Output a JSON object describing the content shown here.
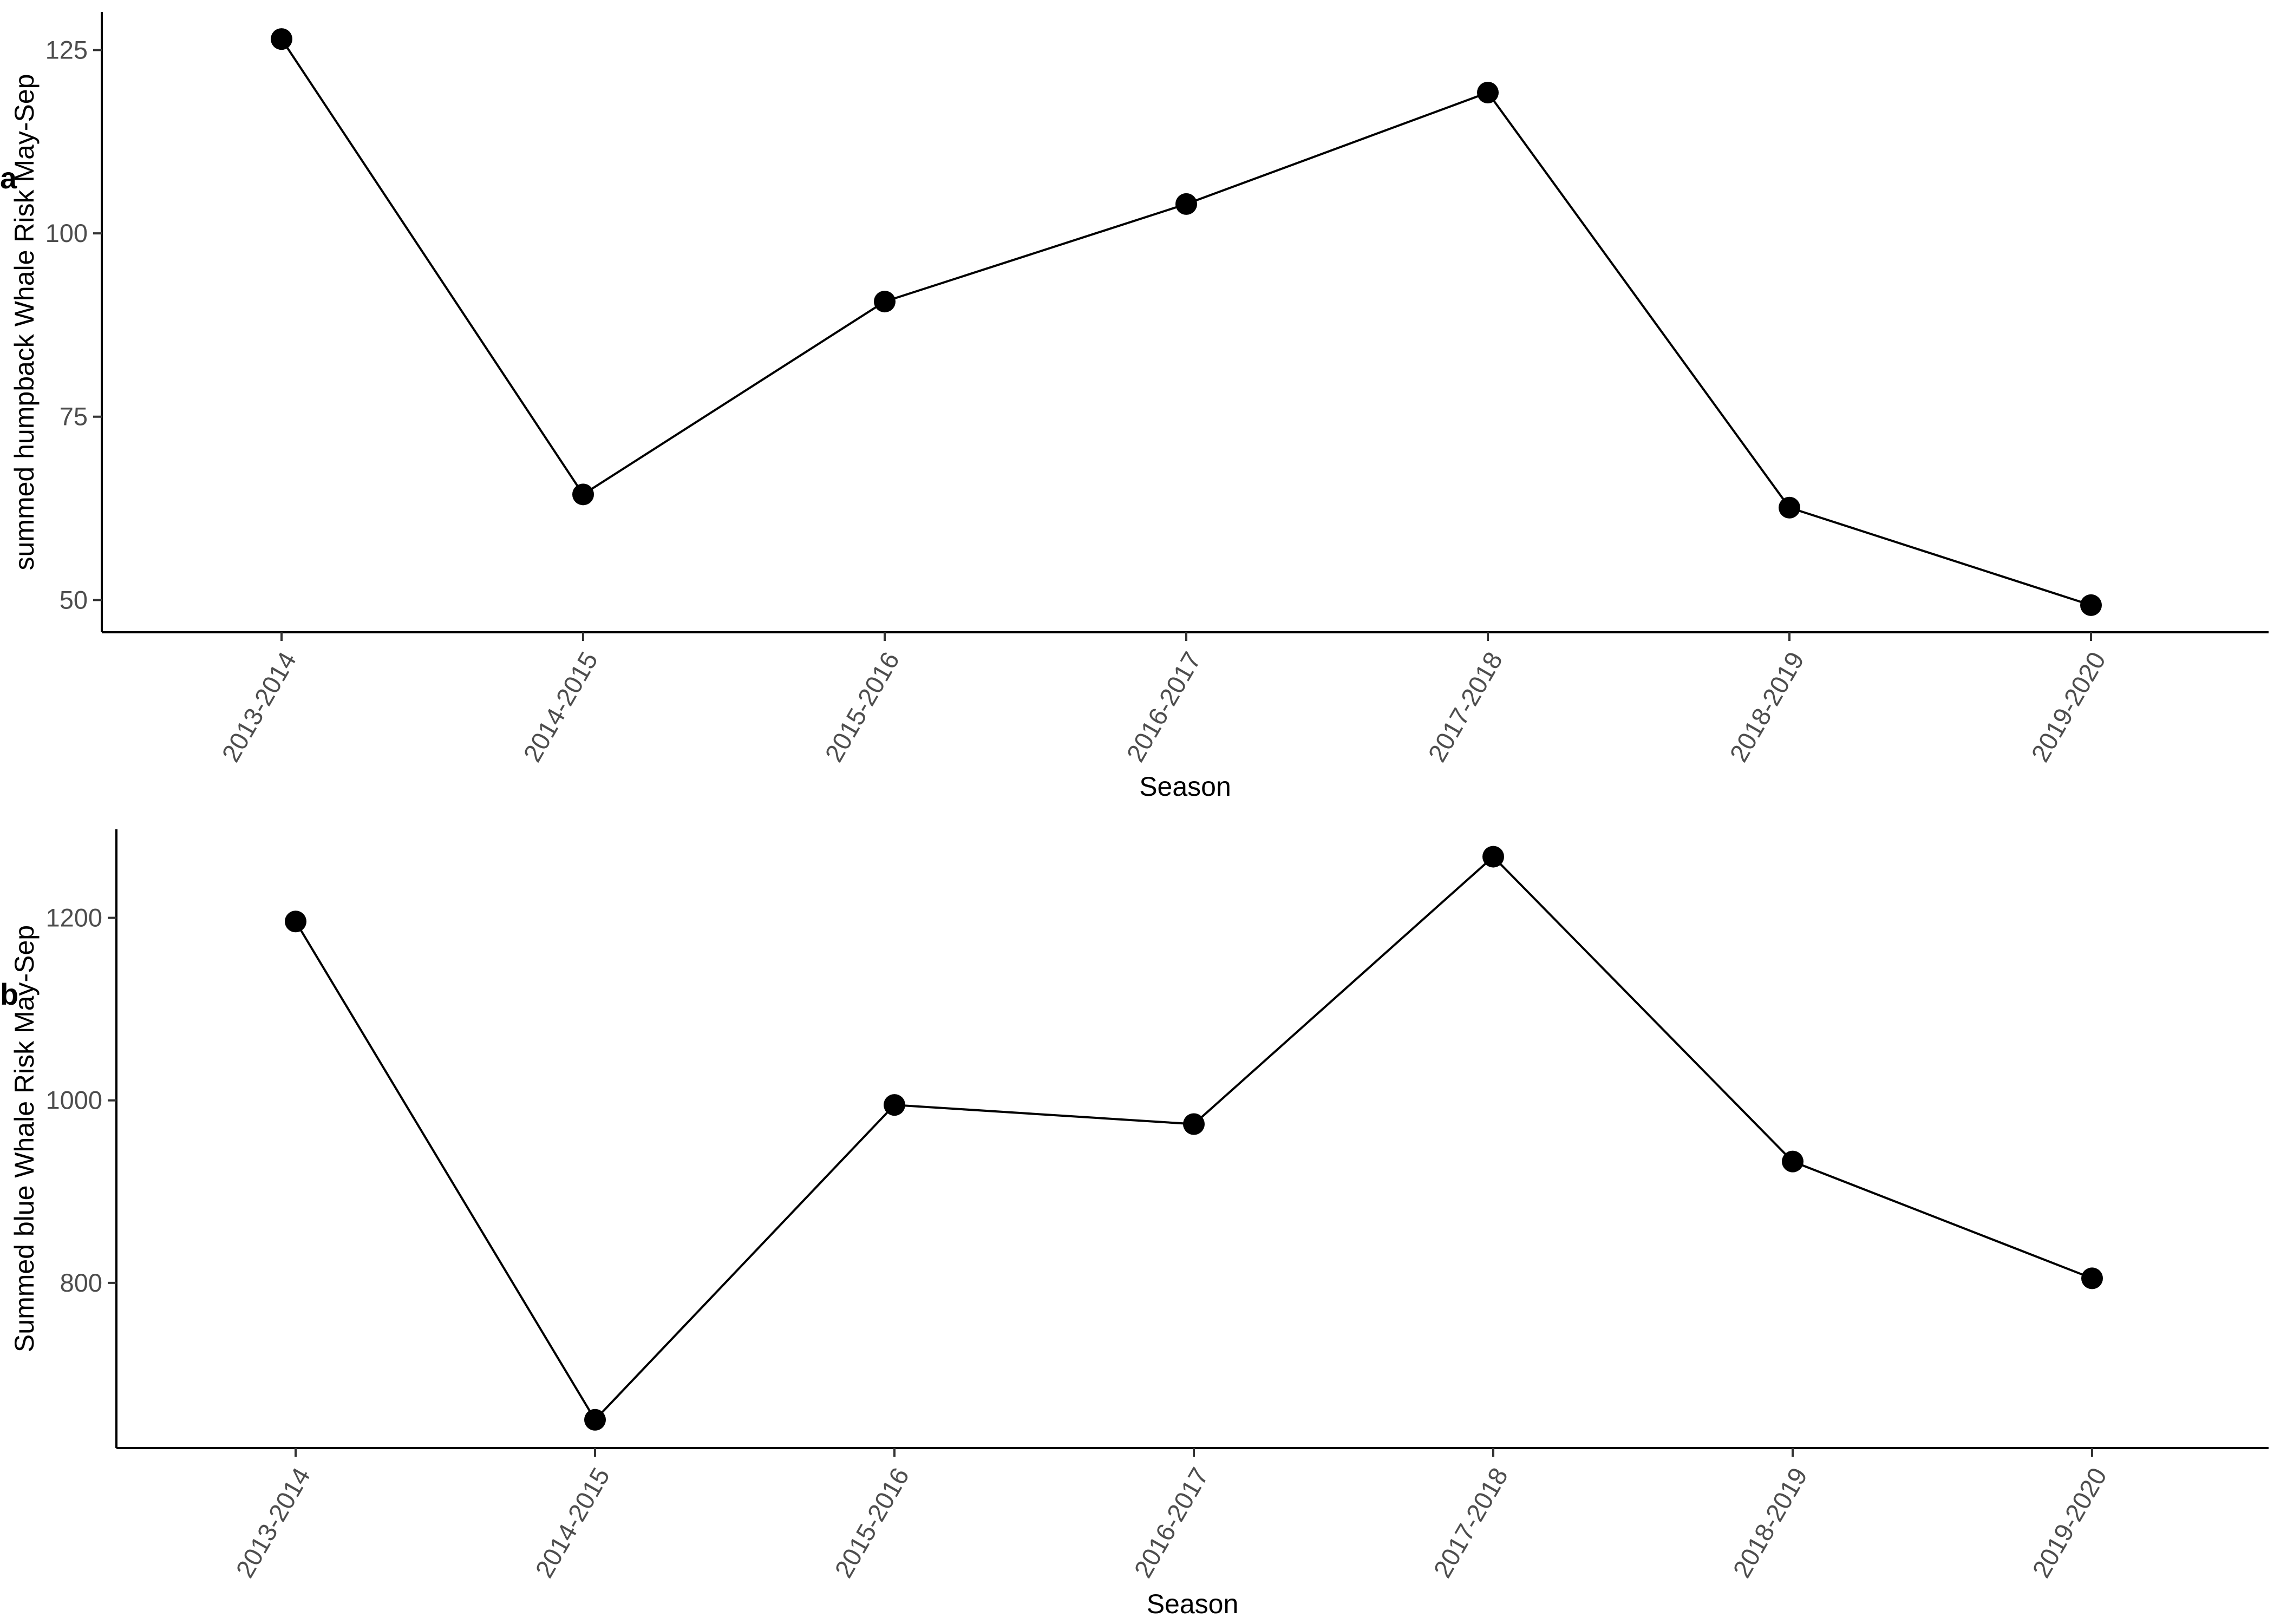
{
  "chart_data": [
    {
      "type": "line",
      "panel_label": "a",
      "categories": [
        "2013-2014",
        "2014-2015",
        "2015-2016",
        "2016-2017",
        "2017-2018",
        "2018-2019",
        "2019-2020"
      ],
      "values": [
        126.5,
        64.4,
        90.7,
        104.0,
        119.2,
        62.6,
        49.3
      ],
      "xlabel": "Season",
      "ylabel": "summed humpback Whale Risk May-Sep",
      "yticks": [
        50,
        75,
        100,
        125
      ],
      "ylim": [
        45.6,
        130.2
      ],
      "grid": false,
      "colors": {
        "line": "#000000",
        "points": "#000000"
      }
    },
    {
      "type": "line",
      "panel_label": "b",
      "categories": [
        "2013-2014",
        "2014-2015",
        "2015-2016",
        "2016-2017",
        "2017-2018",
        "2018-2019",
        "2019-2020"
      ],
      "values": [
        1196,
        650,
        995,
        974,
        1267,
        933,
        805
      ],
      "xlabel": "Season",
      "ylabel": "Summed blue Whale Risk May-Sep",
      "yticks": [
        800,
        1000,
        1200
      ],
      "ylim": [
        619,
        1297
      ],
      "grid": false,
      "colors": {
        "line": "#000000",
        "points": "#000000"
      }
    }
  ]
}
